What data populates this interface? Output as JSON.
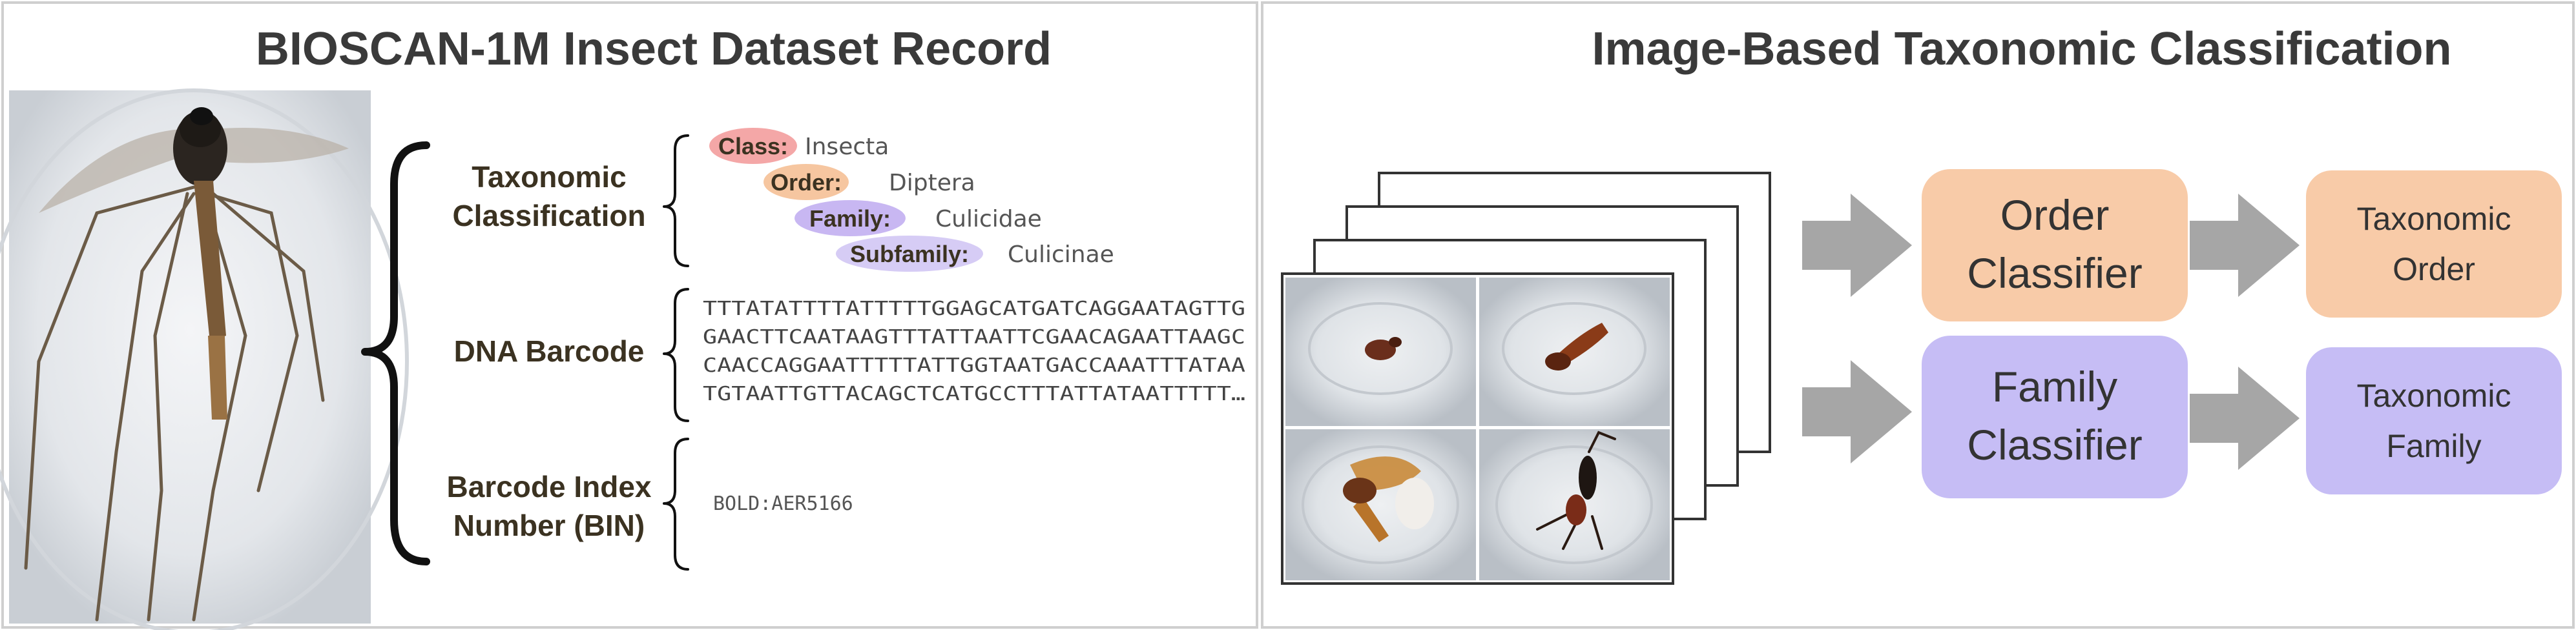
{
  "left_panel": {
    "title": "BIOSCAN-1M Insect Dataset Record",
    "taxonomy": {
      "label_lines": [
        "Taxonomic",
        "Classification"
      ],
      "ranks": [
        {
          "rank": "Class:",
          "value": "Insecta",
          "color": "#f4a7a7"
        },
        {
          "rank": "Order:",
          "value": "Diptera",
          "color": "#f6c6a0"
        },
        {
          "rank": "Family:",
          "value": "Culicidae",
          "color": "#c8b7f2"
        },
        {
          "rank": "Subfamily:",
          "value": "Culicinae",
          "color": "#d6ccf5"
        }
      ]
    },
    "dna": {
      "label": "DNA Barcode",
      "lines": [
        "TTTATATTTTATTTTTGGAGCATGATCAGGAATAGTTG",
        "GAACTTCAATAAGTTTATTAATTCGAACAGAATTAAGC",
        "CAACCAGGAATTTTTATTGGTAATGACCAAATTTATAA",
        "TGTAATTGTTACAGCTCATGCCTTTATTATAATTTTT…"
      ]
    },
    "bin": {
      "label_lines": [
        "Barcode Index",
        "Number (BIN)"
      ],
      "value": "BOLD:AER5166"
    }
  },
  "right_panel": {
    "title": "Image-Based Taxonomic Classification",
    "order_classifier_lines": [
      "Order",
      "Classifier"
    ],
    "order_output_lines": [
      "Taxonomic",
      "Order"
    ],
    "family_classifier_lines": [
      "Family",
      "Classifier"
    ],
    "family_output_lines": [
      "Taxonomic",
      "Family"
    ],
    "colors": {
      "order": "#f8cba8",
      "family": "#c6bdf5",
      "arrow": "#a6a6a6"
    }
  }
}
